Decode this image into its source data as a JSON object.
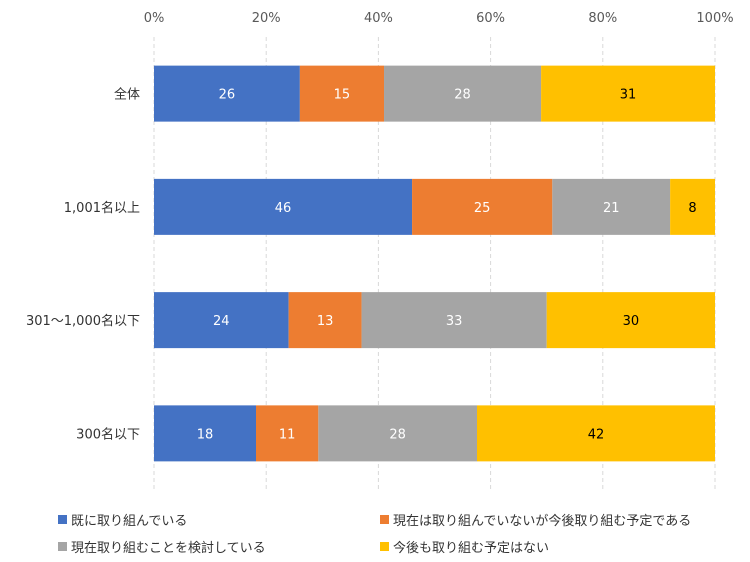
{
  "chart_data": {
    "type": "bar",
    "orientation": "horizontal",
    "stacked": "percent",
    "categories": [
      "全体",
      "1,001名以上",
      "301～1,000名以下",
      "300名以下"
    ],
    "series": [
      {
        "name": "既に取り組んでいる",
        "color": "#4472C4",
        "label_color": "#FFFFFF",
        "values": [
          26,
          46,
          24,
          18
        ]
      },
      {
        "name": "現在は取り組んでいないが今後取り組む予定である",
        "color": "#ED7D31",
        "label_color": "#FFFFFF",
        "values": [
          15,
          25,
          13,
          11
        ]
      },
      {
        "name": "現在取り組むことを検討している",
        "color": "#A5A5A5",
        "label_color": "#FFFFFF",
        "values": [
          28,
          21,
          33,
          28
        ]
      },
      {
        "name": "今後も取り組む予定はない",
        "color": "#FFC000",
        "label_color": "#000000",
        "values": [
          31,
          8,
          30,
          42
        ]
      }
    ],
    "x_ticks": [
      "0%",
      "20%",
      "40%",
      "60%",
      "80%",
      "100%"
    ],
    "xlim": [
      0,
      100
    ],
    "grid": true,
    "legend_placement": "bottom"
  }
}
